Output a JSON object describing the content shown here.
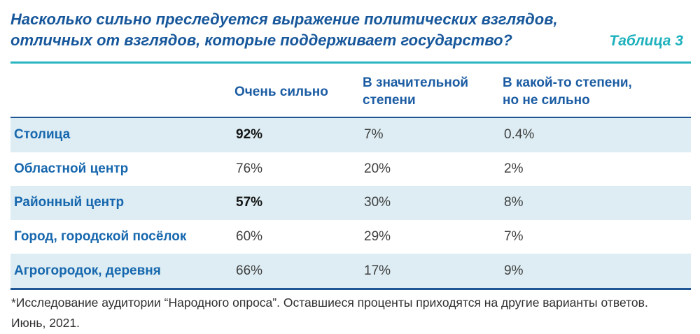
{
  "page": {
    "title_line1": "Насколько сильно преследуется выражение политических взглядов,",
    "title_line2": "отличных от взглядов, которые поддерживает государство?",
    "table_label": "Таблица 3"
  },
  "table": {
    "columns": [
      "Очень сильно",
      "В значительной степени",
      "В какой-то степени, но не сильно"
    ],
    "rows": [
      {
        "label": "Столица",
        "very": "92%",
        "significant": "7%",
        "somewhat": "0.4%"
      },
      {
        "label": "Областной центр",
        "very": "76%",
        "significant": "20%",
        "somewhat": "2%"
      },
      {
        "label": "Районный центр",
        "very": "57%",
        "significant": "30%",
        "somewhat": "8%"
      },
      {
        "label": "Город, городской посёлок",
        "very": "60%",
        "significant": "29%",
        "somewhat": "7%"
      },
      {
        "label": "Агрогородок, деревня",
        "very": "66%",
        "significant": "17%",
        "somewhat": "9%"
      }
    ]
  },
  "footnote": {
    "line1": "*Исследование аудитории “Народного опроса”. Оставшиеся проценты приходятся на другие варианты ответов.",
    "line2": "Июнь, 2021."
  },
  "colors": {
    "heading_blue": "#17579b",
    "label_blue": "#1667ae",
    "accent_teal": "#1db1bd",
    "rule_navy": "#1f5795",
    "row_stripe": "#ddedf3",
    "value_text": "#3f3f3f"
  },
  "chart_data": {
    "type": "table",
    "title": "Насколько сильно преследуется выражение политических взглядов, отличных от взглядов, которые поддерживает государство?",
    "table_label": "Таблица 3",
    "categories": [
      "Столица",
      "Областной центр",
      "Районный центр",
      "Город, городской посёлок",
      "Агрогородок, деревня"
    ],
    "series": [
      {
        "name": "Очень сильно",
        "values": [
          92,
          76,
          57,
          60,
          66
        ]
      },
      {
        "name": "В значительной степени",
        "values": [
          7,
          20,
          30,
          29,
          17
        ]
      },
      {
        "name": "В какой-то степени, но не сильно",
        "values": [
          0.4,
          2,
          8,
          7,
          9
        ]
      }
    ],
    "unit": "%",
    "highlighted_values": [
      "92%",
      "57%"
    ],
    "note": "*Исследование аудитории “Народного опроса”. Оставшиеся проценты приходятся на другие варианты ответов. Июнь, 2021."
  }
}
